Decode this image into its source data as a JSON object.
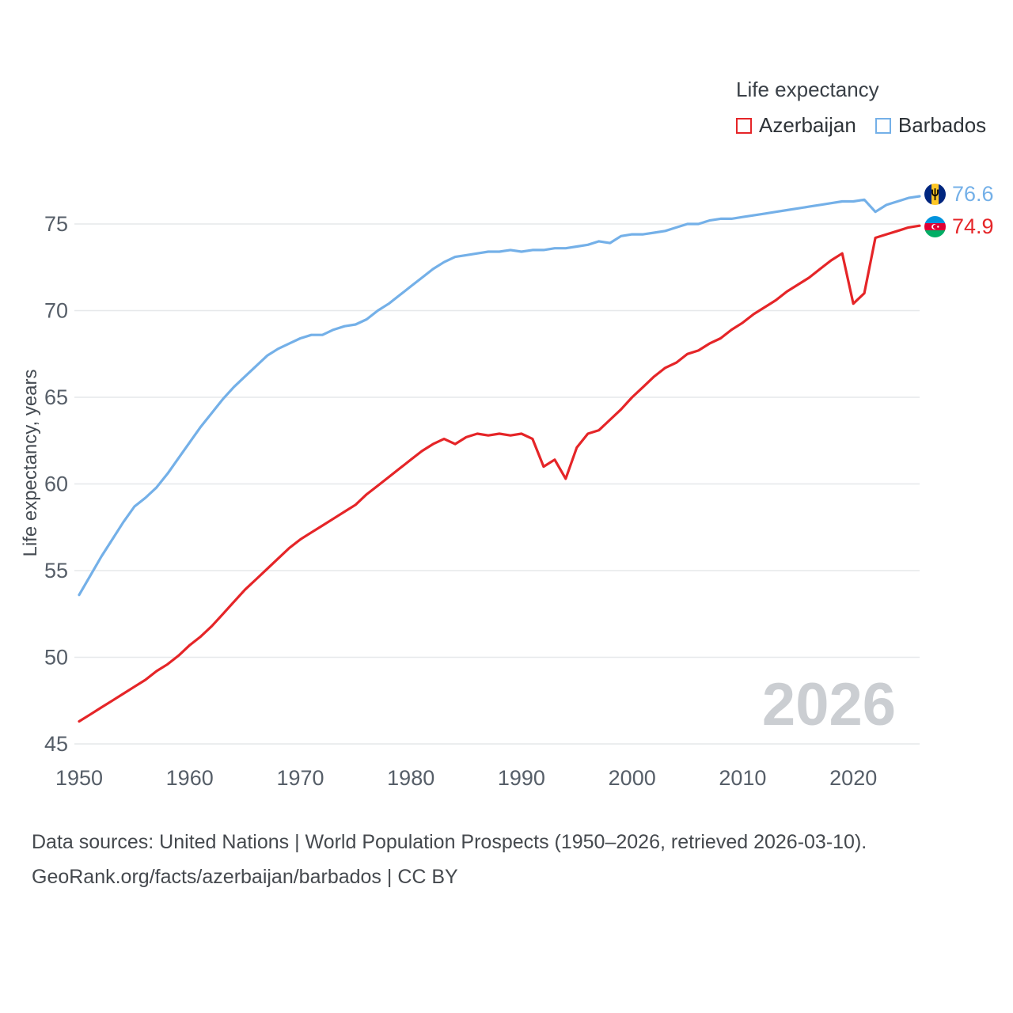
{
  "chart_data": {
    "type": "line",
    "title": "Life expectancy",
    "xlabel": "",
    "ylabel": "Life expectancy, years",
    "xlim": [
      1950,
      2026
    ],
    "ylim": [
      45,
      75
    ],
    "xticks": [
      1950,
      1960,
      1970,
      1980,
      1990,
      2000,
      2010,
      2020
    ],
    "yticks": [
      45,
      50,
      55,
      60,
      65,
      70,
      75
    ],
    "grid": "horizontal-only",
    "legend_position": "top-right",
    "watermark": "2026",
    "x": [
      1950,
      1951,
      1952,
      1953,
      1954,
      1955,
      1956,
      1957,
      1958,
      1959,
      1960,
      1961,
      1962,
      1963,
      1964,
      1965,
      1966,
      1967,
      1968,
      1969,
      1970,
      1971,
      1972,
      1973,
      1974,
      1975,
      1976,
      1977,
      1978,
      1979,
      1980,
      1981,
      1982,
      1983,
      1984,
      1985,
      1986,
      1987,
      1988,
      1989,
      1990,
      1991,
      1992,
      1993,
      1994,
      1995,
      1996,
      1997,
      1998,
      1999,
      2000,
      2001,
      2002,
      2003,
      2004,
      2005,
      2006,
      2007,
      2008,
      2009,
      2010,
      2011,
      2012,
      2013,
      2014,
      2015,
      2016,
      2017,
      2018,
      2019,
      2020,
      2021,
      2022,
      2023,
      2024,
      2025,
      2026
    ],
    "series": [
      {
        "name": "Azerbaijan",
        "color": "#e52528",
        "values": [
          46.3,
          46.7,
          47.1,
          47.5,
          47.9,
          48.3,
          48.7,
          49.2,
          49.6,
          50.1,
          50.7,
          51.2,
          51.8,
          52.5,
          53.2,
          53.9,
          54.5,
          55.1,
          55.7,
          56.3,
          56.8,
          57.2,
          57.6,
          58.0,
          58.4,
          58.8,
          59.4,
          59.9,
          60.4,
          60.9,
          61.4,
          61.9,
          62.3,
          62.6,
          62.3,
          62.7,
          62.9,
          62.8,
          62.9,
          62.8,
          62.9,
          62.6,
          61.0,
          61.4,
          60.3,
          62.1,
          62.9,
          63.1,
          63.7,
          64.3,
          65.0,
          65.6,
          66.2,
          66.7,
          67.0,
          67.5,
          67.7,
          68.1,
          68.4,
          68.9,
          69.3,
          69.8,
          70.2,
          70.6,
          71.1,
          71.5,
          71.9,
          72.4,
          72.9,
          73.3,
          70.4,
          71.0,
          74.2,
          74.4,
          74.6,
          74.8,
          74.9
        ]
      },
      {
        "name": "Barbados",
        "color": "#74b0e8",
        "values": [
          53.6,
          54.7,
          55.8,
          56.8,
          57.8,
          58.7,
          59.2,
          59.8,
          60.6,
          61.5,
          62.4,
          63.3,
          64.1,
          64.9,
          65.6,
          66.2,
          66.8,
          67.4,
          67.8,
          68.1,
          68.4,
          68.6,
          68.6,
          68.9,
          69.1,
          69.2,
          69.5,
          70.0,
          70.4,
          70.9,
          71.4,
          71.9,
          72.4,
          72.8,
          73.1,
          73.2,
          73.3,
          73.4,
          73.4,
          73.5,
          73.4,
          73.5,
          73.5,
          73.6,
          73.6,
          73.7,
          73.8,
          74.0,
          73.9,
          74.3,
          74.4,
          74.4,
          74.5,
          74.6,
          74.8,
          75.0,
          75.0,
          75.2,
          75.3,
          75.3,
          75.4,
          75.5,
          75.6,
          75.7,
          75.8,
          75.9,
          76.0,
          76.1,
          76.2,
          76.3,
          76.3,
          76.4,
          75.7,
          76.1,
          76.3,
          76.5,
          76.6
        ]
      }
    ],
    "end_labels": [
      {
        "series": "Barbados",
        "value": "76.6"
      },
      {
        "series": "Azerbaijan",
        "value": "74.9"
      }
    ]
  },
  "footer": {
    "line1": "Data sources: United Nations | World Population Prospects (1950–2026, retrieved 2026-03-10).",
    "line2": "GeoRank.org/facts/azerbaijan/barbados | CC BY"
  }
}
